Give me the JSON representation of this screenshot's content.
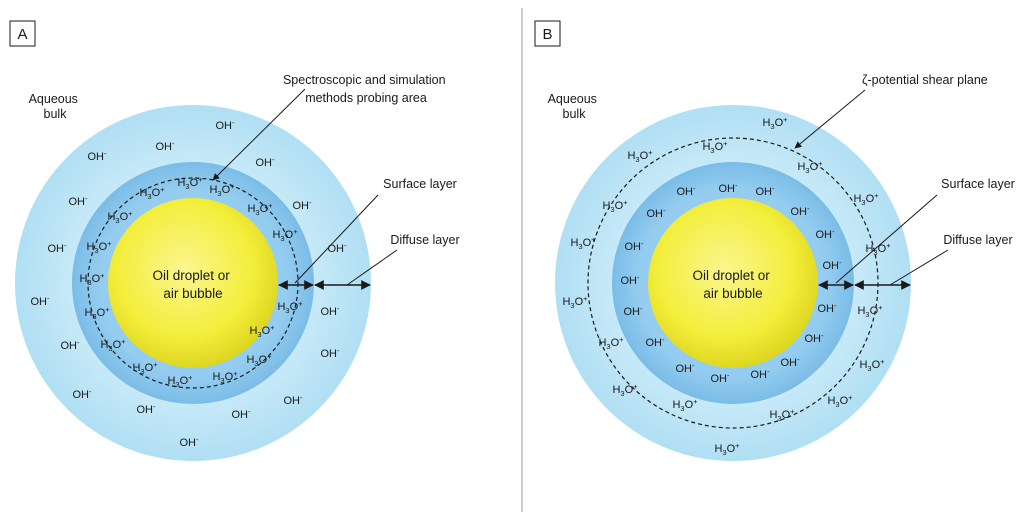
{
  "panels": [
    {
      "letter": "A",
      "bulk_label": [
        "Aqueous",
        "bulk"
      ],
      "core_label": [
        "Oil droplet or",
        "air bubble"
      ],
      "callouts": {
        "probe": [
          "Spectroscopic and simulation",
          "methods probing area"
        ],
        "surface": "Surface layer",
        "diffuse": "Diffuse layer"
      },
      "inner_ion": {
        "base": "H",
        "sub": "3",
        "mid": "O",
        "sup": "+"
      },
      "outer_ion": {
        "base": "OH",
        "sup": "-"
      }
    },
    {
      "letter": "B",
      "bulk_label": [
        "Aqueous",
        "bulk"
      ],
      "core_label": [
        "Oil droplet or",
        "air bubble"
      ],
      "callouts": {
        "shear": "ζ-potential shear plane",
        "surface": "Surface layer",
        "diffuse": "Diffuse layer"
      },
      "inner_ion": {
        "base": "OH",
        "sup": "-"
      },
      "outer_ion": {
        "base": "H",
        "sub": "3",
        "mid": "O",
        "sup": "+"
      }
    }
  ],
  "colors": {
    "core": "#f3ee3a",
    "surface_layer": "#7dbfe9",
    "diffuse_layer": "#b9e3f5",
    "divider": "#9a9a9a"
  }
}
